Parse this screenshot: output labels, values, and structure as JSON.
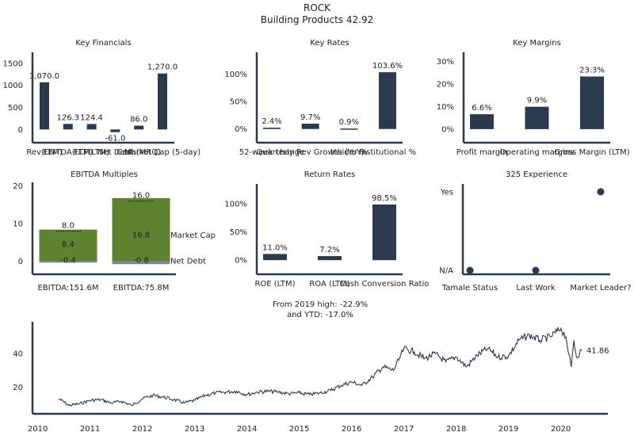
{
  "header": {
    "ticker": "ROCK",
    "subtitle": "Building Products 42.92"
  },
  "colors": {
    "navy": "#2b3a4d",
    "green": "#5e8230",
    "gray": "#7a8a99"
  },
  "chart_data": [
    {
      "id": "key-financials",
      "type": "bar",
      "title": "Key Financials",
      "categories": [
        "Rev(LTM)",
        "EBITDA(LTM)",
        "FCF(LTM)",
        "Net Debt",
        "Cash(MRQ)",
        "Market Cap (5-day)"
      ],
      "values": [
        1070.0,
        126.3,
        124.4,
        -61.0,
        86.0,
        1270.0
      ],
      "value_labels": [
        "1,070.0",
        "126.3",
        "124.4",
        "-61.0",
        "86.0",
        "1,270.0"
      ],
      "yticks": [
        0,
        500,
        1000,
        1500
      ],
      "ytick_labels": [
        "0",
        "500",
        "1000",
        "1500"
      ],
      "ylim": [
        -300,
        1750
      ]
    },
    {
      "id": "key-rates",
      "type": "bar",
      "title": "Key Rates",
      "categories": [
        "52-week change",
        "Quarterly Rev Growth (YoY)",
        "Insider %",
        "Institutional %"
      ],
      "values": [
        2.4,
        9.7,
        0.9,
        103.6
      ],
      "value_labels": [
        "2.4%",
        "9.7%",
        "0.9%",
        "103.6%"
      ],
      "yticks": [
        0,
        50,
        100
      ],
      "ytick_labels": [
        "0%",
        "50%",
        "100%"
      ],
      "ylim": [
        -25,
        140
      ]
    },
    {
      "id": "key-margins",
      "type": "bar",
      "title": "Key Margins",
      "categories": [
        "Profit margin",
        "Operating margins",
        "Gross Margin (LTM)"
      ],
      "values": [
        6.6,
        9.9,
        23.3
      ],
      "value_labels": [
        "6.6%",
        "9.9%",
        "23.3%"
      ],
      "yticks": [
        0,
        10,
        20,
        30
      ],
      "ytick_labels": [
        "0%",
        "10%",
        "20%",
        "30%"
      ],
      "ylim": [
        -6,
        34
      ]
    },
    {
      "id": "ebitda-multiples",
      "type": "bar",
      "title": "EBITDA Multiples",
      "categories": [
        "EBITDA:151.6M",
        "EBITDA:75.8M"
      ],
      "series": [
        {
          "name": "Market Cap",
          "values": [
            8.4,
            16.8
          ]
        },
        {
          "name": "Net Debt",
          "values": [
            -0.4,
            -0.8
          ]
        }
      ],
      "totals": [
        8.0,
        16.0
      ],
      "value_labels": {
        "totals": [
          "8.0",
          "16.0"
        ],
        "market_cap": [
          "8.4",
          "16.8"
        ],
        "net_debt": [
          "-0.4",
          "-0.8"
        ]
      },
      "yticks": [
        0,
        10,
        20
      ],
      "ytick_labels": [
        "0",
        "10",
        "20"
      ],
      "ylim": [
        -3.5,
        21
      ]
    },
    {
      "id": "return-rates",
      "type": "bar",
      "title": "Return Rates",
      "categories": [
        "ROE (LTM)",
        "ROA (LTM)",
        "Cash Conversion Ratio"
      ],
      "values": [
        11.0,
        7.2,
        98.5
      ],
      "value_labels": [
        "11.0%",
        "7.2%",
        "98.5%"
      ],
      "yticks": [
        0,
        50,
        100
      ],
      "ytick_labels": [
        "0%",
        "50%",
        "100%"
      ],
      "ylim": [
        -25,
        135
      ]
    },
    {
      "id": "experience-325",
      "type": "scatter",
      "title": "325 Experience",
      "categories": [
        "Tamale Status",
        "Last Work",
        "Market Leader?"
      ],
      "values": [
        0,
        0,
        1
      ],
      "ytick_labels": [
        "N/A",
        "Yes"
      ],
      "ylim": [
        -0.05,
        1.1
      ]
    },
    {
      "id": "price-history",
      "type": "line",
      "title": "From 2019 high: -22.9%\nand YTD: -17.0%",
      "last_label": "41.86",
      "x_ticks": [
        "2010",
        "2011",
        "2012",
        "2013",
        "2014",
        "2015",
        "2016",
        "2017",
        "2018",
        "2019",
        "2020"
      ],
      "yticks": [
        20,
        40
      ],
      "ytick_labels": [
        "20",
        "40"
      ],
      "xlim": [
        2009.9,
        2020.9
      ],
      "ylim": [
        4,
        59
      ],
      "x": [
        2010.4,
        2010.6,
        2010.8,
        2011.0,
        2011.2,
        2011.4,
        2011.6,
        2011.8,
        2012.0,
        2012.2,
        2012.4,
        2012.6,
        2012.8,
        2013.0,
        2013.2,
        2013.4,
        2013.6,
        2013.8,
        2014.0,
        2014.2,
        2014.4,
        2014.6,
        2014.8,
        2015.0,
        2015.2,
        2015.4,
        2015.6,
        2015.8,
        2016.0,
        2016.2,
        2016.4,
        2016.6,
        2016.8,
        2016.9,
        2017.0,
        2017.2,
        2017.4,
        2017.6,
        2017.8,
        2018.0,
        2018.2,
        2018.4,
        2018.6,
        2018.8,
        2019.0,
        2019.2,
        2019.4,
        2019.6,
        2019.8,
        2020.0,
        2020.1,
        2020.15,
        2020.2,
        2020.25,
        2020.3,
        2020.4
      ],
      "y": [
        13.0,
        9.0,
        10.0,
        12.0,
        12.5,
        10.5,
        11.5,
        9.0,
        13.0,
        15.0,
        14.0,
        12.5,
        10.5,
        12.0,
        15.0,
        16.5,
        17.0,
        17.5,
        15.5,
        17.0,
        17.5,
        17.0,
        16.0,
        16.5,
        15.5,
        16.5,
        18.0,
        21.0,
        23.0,
        21.0,
        26.0,
        32.0,
        30.0,
        36.0,
        43.0,
        41.0,
        37.0,
        40.0,
        35.0,
        38.0,
        32.0,
        39.0,
        43.0,
        38.0,
        38.5,
        48.0,
        51.0,
        48.0,
        50.0,
        55.0,
        50.0,
        40.0,
        32.0,
        48.0,
        38.0,
        41.86
      ]
    }
  ]
}
